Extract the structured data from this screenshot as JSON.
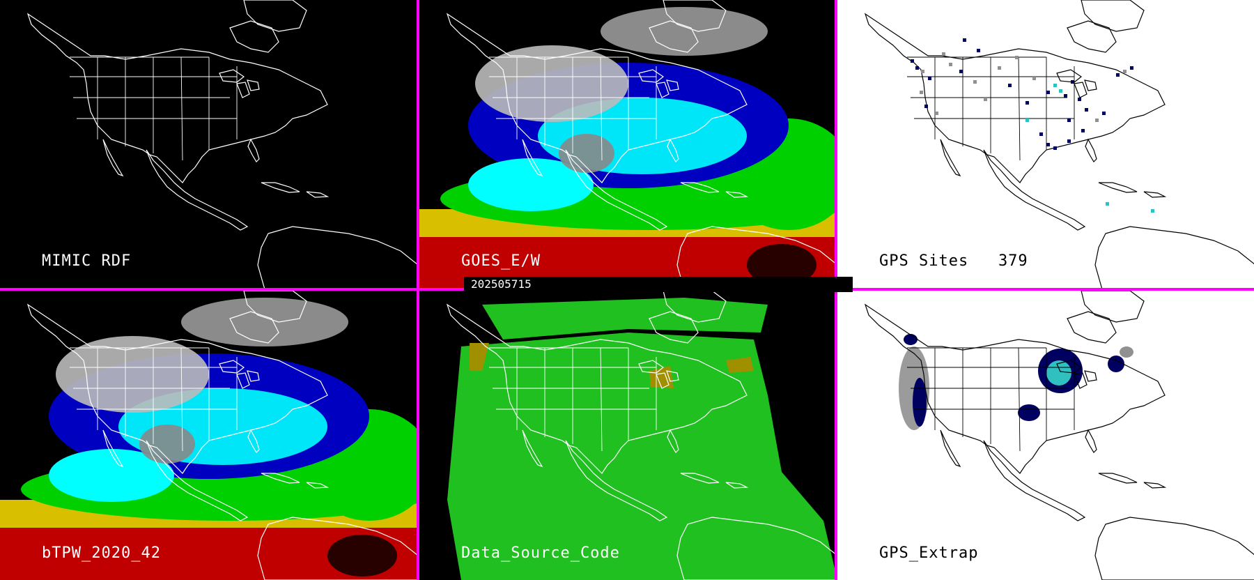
{
  "panels": [
    {
      "label": "MIMIC RDF",
      "bg": "#000000",
      "kind": "base"
    },
    {
      "label": "GOES_E/W",
      "bg": "#000000",
      "kind": "tpw"
    },
    {
      "label": "GPS Sites   379",
      "bg": "#ffffff",
      "kind": "gps-sites"
    },
    {
      "label": "bTPW_2020_42",
      "bg": "#000000",
      "kind": "tpw"
    },
    {
      "label": "Data_Source_Code",
      "bg": "#000000",
      "kind": "source"
    },
    {
      "label": "GPS_Extrap",
      "bg": "#ffffff",
      "kind": "gps-extrap"
    }
  ],
  "timestamp": "202505715",
  "colors": {
    "divider": "#ff00ff",
    "tpw_scale": [
      "#c00000",
      "#d8c000",
      "#00d000",
      "#00ffff",
      "#0000c0",
      "#ffffff"
    ],
    "source_green": "#20c020",
    "source_olive": "#a09000",
    "gps_dark": "#000060",
    "gps_gray": "#909090",
    "gps_cyan": "#30c0c0"
  }
}
